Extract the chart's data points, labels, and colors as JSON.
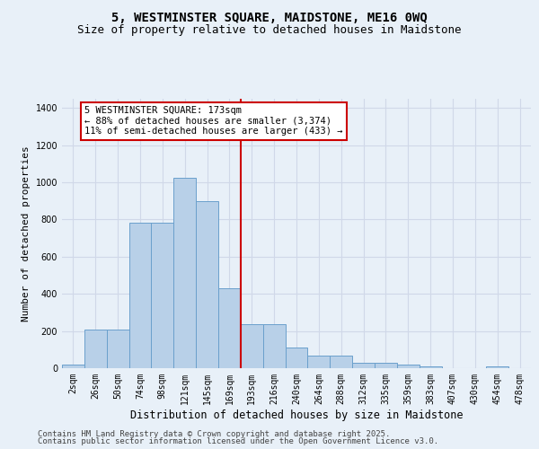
{
  "title1": "5, WESTMINSTER SQUARE, MAIDSTONE, ME16 0WQ",
  "title2": "Size of property relative to detached houses in Maidstone",
  "xlabel": "Distribution of detached houses by size in Maidstone",
  "ylabel": "Number of detached properties",
  "categories": [
    "2sqm",
    "26sqm",
    "50sqm",
    "74sqm",
    "98sqm",
    "121sqm",
    "145sqm",
    "169sqm",
    "193sqm",
    "216sqm",
    "240sqm",
    "264sqm",
    "288sqm",
    "312sqm",
    "335sqm",
    "359sqm",
    "383sqm",
    "407sqm",
    "430sqm",
    "454sqm",
    "478sqm"
  ],
  "values": [
    20,
    210,
    210,
    785,
    785,
    1025,
    900,
    430,
    235,
    235,
    110,
    70,
    70,
    30,
    30,
    20,
    10,
    0,
    0,
    10,
    0
  ],
  "bar_color": "#b8d0e8",
  "bar_edge_color": "#6aa0cc",
  "background_color": "#e8f0f8",
  "grid_color": "#d0d8e8",
  "vline_x": 7.5,
  "vline_color": "#cc0000",
  "annotation_text": "5 WESTMINSTER SQUARE: 173sqm\n← 88% of detached houses are smaller (3,374)\n11% of semi-detached houses are larger (433) →",
  "annotation_box_color": "#ffffff",
  "annotation_box_edge": "#cc0000",
  "ylim": [
    0,
    1450
  ],
  "yticks": [
    0,
    200,
    400,
    600,
    800,
    1000,
    1200,
    1400
  ],
  "footer1": "Contains HM Land Registry data © Crown copyright and database right 2025.",
  "footer2": "Contains public sector information licensed under the Open Government Licence v3.0.",
  "title1_fontsize": 10,
  "title2_fontsize": 9,
  "xlabel_fontsize": 8.5,
  "ylabel_fontsize": 8,
  "tick_fontsize": 7,
  "annotation_fontsize": 7.5,
  "footer_fontsize": 6.5
}
